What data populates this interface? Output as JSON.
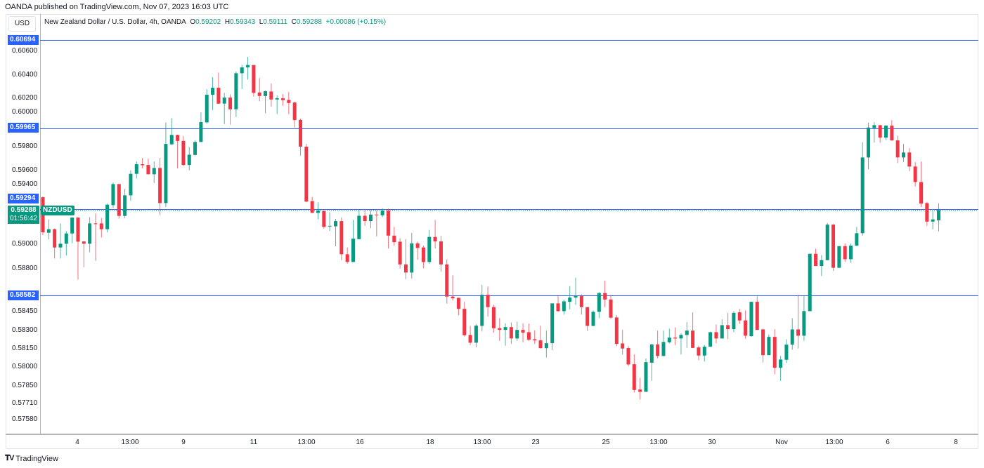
{
  "header": {
    "published": "OANDA published on TradingView.com, Nov 07, 2023 16:03 UTC"
  },
  "currency": "USD",
  "legend": {
    "title": "New Zealand Dollar / U.S. Dollar, 4h, OANDA",
    "o_label": "O",
    "o": "0.59202",
    "h_label": "H",
    "h": "0.59343",
    "l_label": "L",
    "l": "0.59111",
    "c_label": "C",
    "c": "0.59288",
    "change": "+0.00086 (+0.15%)"
  },
  "price_ticks": [
    "0.60600",
    "0.60400",
    "0.60200",
    "0.60000",
    "0.59800",
    "0.59600",
    "0.59400",
    "0.59000",
    "0.58800",
    "0.58450",
    "0.58300",
    "0.58150",
    "0.58000",
    "0.57850",
    "0.57710",
    "0.57580"
  ],
  "levels": [
    {
      "label": "0.60694",
      "value": 0.60694
    },
    {
      "label": "0.59965",
      "value": 0.59965
    },
    {
      "label": "0.59294",
      "value": 0.59294
    },
    {
      "label": "0.58582",
      "value": 0.58582
    }
  ],
  "current": {
    "price": "0.59288",
    "value": 0.59288,
    "countdown": "01:56:42",
    "symbol": "NZDUSD"
  },
  "time_labels": [
    "4",
    "13:00",
    "9",
    "11",
    "13:00",
    "16",
    "18",
    "13:00",
    "23",
    "25",
    "13:00",
    "30",
    "Nov",
    "13:00",
    "6",
    "8"
  ],
  "footer": {
    "brand": "TradingView"
  },
  "colors": {
    "up": "#089981",
    "down": "#f23645",
    "level": "#2962ff"
  },
  "chart_data": {
    "type": "candlestick",
    "title": "New Zealand Dollar / U.S. Dollar, 4h, OANDA",
    "ylim": [
      0.5752,
      0.6079
    ],
    "ohlc": [
      [
        0.59393,
        0.594,
        0.5908,
        0.59103
      ],
      [
        0.591,
        0.5921,
        0.59045,
        0.59129
      ],
      [
        0.59129,
        0.59135,
        0.58887,
        0.58978
      ],
      [
        0.58978,
        0.59177,
        0.58887,
        0.59009
      ],
      [
        0.59009,
        0.59113,
        0.58912,
        0.59094
      ],
      [
        0.59094,
        0.59229,
        0.59013,
        0.59225
      ],
      [
        0.59225,
        0.59229,
        0.58713,
        0.59026
      ],
      [
        0.59028,
        0.59028,
        0.58815,
        0.59009
      ],
      [
        0.59009,
        0.59229,
        0.58939,
        0.59177
      ],
      [
        0.59177,
        0.59258,
        0.58868,
        0.59171
      ],
      [
        0.59177,
        0.59221,
        0.59061,
        0.59129
      ],
      [
        0.59129,
        0.59341,
        0.59103,
        0.59332
      ],
      [
        0.59328,
        0.59515,
        0.59303,
        0.59502
      ],
      [
        0.59502,
        0.59502,
        0.59216,
        0.59239
      ],
      [
        0.59239,
        0.59463,
        0.59221,
        0.59409
      ],
      [
        0.59409,
        0.59616,
        0.59364,
        0.59587
      ],
      [
        0.59587,
        0.59689,
        0.59548,
        0.59666
      ],
      [
        0.59666,
        0.59718,
        0.59631,
        0.59658
      ],
      [
        0.5966,
        0.59712,
        0.59583,
        0.59583
      ],
      [
        0.59583,
        0.59689,
        0.59511,
        0.59635
      ],
      [
        0.59635,
        0.59718,
        0.59245,
        0.59345
      ],
      [
        0.59345,
        0.60012,
        0.59312,
        0.59834
      ],
      [
        0.5983,
        0.60047,
        0.59828,
        0.59908
      ],
      [
        0.59908,
        0.5991,
        0.59631,
        0.59859
      ],
      [
        0.59859,
        0.59898,
        0.5965,
        0.5966
      ],
      [
        0.5966,
        0.59809,
        0.59616,
        0.59745
      ],
      [
        0.59743,
        0.59863,
        0.59737,
        0.5985
      ],
      [
        0.5985,
        0.60095,
        0.5985,
        0.60014
      ],
      [
        0.60012,
        0.60285,
        0.60002,
        0.6024
      ],
      [
        0.6024,
        0.60385,
        0.60114,
        0.60298
      ],
      [
        0.60298,
        0.60424,
        0.60163,
        0.60167
      ],
      [
        0.60167,
        0.60256,
        0.59998,
        0.60217
      ],
      [
        0.60217,
        0.60244,
        0.59993,
        0.6012
      ],
      [
        0.6012,
        0.60433,
        0.60056,
        0.60418
      ],
      [
        0.60418,
        0.60487,
        0.60288,
        0.60466
      ],
      [
        0.60466,
        0.60553,
        0.60366,
        0.60486
      ],
      [
        0.60486,
        0.60487,
        0.60225,
        0.60256
      ],
      [
        0.60259,
        0.60379,
        0.60186,
        0.6023
      ],
      [
        0.6023,
        0.60275,
        0.60089,
        0.60269
      ],
      [
        0.60267,
        0.60333,
        0.60143,
        0.60201
      ],
      [
        0.60201,
        0.60234,
        0.6008,
        0.60211
      ],
      [
        0.60211,
        0.60246,
        0.60149,
        0.60196
      ],
      [
        0.60198,
        0.60263,
        0.6008,
        0.60172
      ],
      [
        0.60176,
        0.60182,
        0.59969,
        0.60031
      ],
      [
        0.60033,
        0.60041,
        0.59737,
        0.59811
      ],
      [
        0.59811,
        0.59834,
        0.59351,
        0.59357
      ],
      [
        0.59361,
        0.59395,
        0.59264,
        0.59264
      ],
      [
        0.59264,
        0.59351,
        0.59211,
        0.59283
      ],
      [
        0.59279,
        0.59287,
        0.59134,
        0.59148
      ],
      [
        0.59152,
        0.59268,
        0.59115,
        0.59157
      ],
      [
        0.59153,
        0.59215,
        0.58989,
        0.59196
      ],
      [
        0.59196,
        0.59225,
        0.58873,
        0.58922
      ],
      [
        0.58922,
        0.58978,
        0.58844,
        0.58858
      ],
      [
        0.58858,
        0.59206,
        0.58858,
        0.59051
      ],
      [
        0.59047,
        0.59293,
        0.59047,
        0.5924
      ],
      [
        0.5924,
        0.59293,
        0.59157,
        0.59196
      ],
      [
        0.59196,
        0.59287,
        0.59138,
        0.5925
      ],
      [
        0.5925,
        0.59283,
        0.5907,
        0.59244
      ],
      [
        0.59244,
        0.59302,
        0.59229,
        0.59283
      ],
      [
        0.59283,
        0.59298,
        0.5897,
        0.59076
      ],
      [
        0.59076,
        0.59148,
        0.58993,
        0.59022
      ],
      [
        0.59026,
        0.59055,
        0.58804,
        0.58838
      ],
      [
        0.58838,
        0.59047,
        0.58717,
        0.58771
      ],
      [
        0.58771,
        0.59099,
        0.58722,
        0.59012
      ],
      [
        0.59012,
        0.59026,
        0.58877,
        0.58974
      ],
      [
        0.58978,
        0.58993,
        0.58806,
        0.58858
      ],
      [
        0.58858,
        0.59123,
        0.58844,
        0.59065
      ],
      [
        0.59065,
        0.59206,
        0.5897,
        0.59028
      ],
      [
        0.59028,
        0.59074,
        0.58777,
        0.58838
      ],
      [
        0.58838,
        0.58881,
        0.58514,
        0.58572
      ],
      [
        0.58572,
        0.58748,
        0.58539,
        0.58558
      ],
      [
        0.58562,
        0.58562,
        0.58419,
        0.58471
      ],
      [
        0.58471,
        0.58529,
        0.58243,
        0.58253
      ],
      [
        0.58255,
        0.5833,
        0.58172,
        0.58191
      ],
      [
        0.58191,
        0.58346,
        0.58152,
        0.58332
      ],
      [
        0.5833,
        0.5867,
        0.58284,
        0.58587
      ],
      [
        0.58587,
        0.58655,
        0.58407,
        0.58485
      ],
      [
        0.58485,
        0.58504,
        0.58274,
        0.58311
      ],
      [
        0.58311,
        0.58394,
        0.58206,
        0.58297
      ],
      [
        0.58297,
        0.58351,
        0.58166,
        0.5832
      ],
      [
        0.5832,
        0.58359,
        0.58181,
        0.58226
      ],
      [
        0.58226,
        0.58365,
        0.58206,
        0.58297
      ],
      [
        0.58297,
        0.58351,
        0.58195,
        0.58274
      ],
      [
        0.58278,
        0.58349,
        0.58206,
        0.58216
      ],
      [
        0.5822,
        0.58293,
        0.58181,
        0.5821
      ],
      [
        0.5821,
        0.58332,
        0.58143,
        0.58146
      ],
      [
        0.58146,
        0.58291,
        0.58069,
        0.58187
      ],
      [
        0.58187,
        0.58516,
        0.58129,
        0.58516
      ],
      [
        0.58516,
        0.58577,
        0.58448,
        0.58452
      ],
      [
        0.58452,
        0.58548,
        0.58423,
        0.58533
      ],
      [
        0.58529,
        0.58659,
        0.58467,
        0.58564
      ],
      [
        0.58564,
        0.58728,
        0.58504,
        0.58577
      ],
      [
        0.58577,
        0.58591,
        0.58423,
        0.58485
      ],
      [
        0.58485,
        0.58485,
        0.58288,
        0.5833
      ],
      [
        0.5833,
        0.58458,
        0.58326,
        0.58446
      ],
      [
        0.58446,
        0.5861,
        0.58394,
        0.58601
      ],
      [
        0.58601,
        0.58703,
        0.58485,
        0.58548
      ],
      [
        0.58548,
        0.58587,
        0.58388,
        0.58398
      ],
      [
        0.584,
        0.58419,
        0.58162,
        0.58181
      ],
      [
        0.58185,
        0.58297,
        0.58094,
        0.58143
      ],
      [
        0.58147,
        0.58162,
        0.57998,
        0.58011
      ],
      [
        0.58013,
        0.58094,
        0.57779,
        0.578
      ],
      [
        0.57804,
        0.57901,
        0.57721,
        0.57785
      ],
      [
        0.57785,
        0.58061,
        0.57785,
        0.5803
      ],
      [
        0.58026,
        0.58181,
        0.57876,
        0.58177
      ],
      [
        0.58177,
        0.58291,
        0.58061,
        0.58081
      ],
      [
        0.58081,
        0.58291,
        0.58081,
        0.58197
      ],
      [
        0.58195,
        0.58307,
        0.58185,
        0.58233
      ],
      [
        0.58233,
        0.58317,
        0.58172,
        0.58226
      ],
      [
        0.58226,
        0.58268,
        0.58094,
        0.58255
      ],
      [
        0.58255,
        0.58361,
        0.58148,
        0.58291
      ],
      [
        0.58291,
        0.58442,
        0.58148,
        0.58148
      ],
      [
        0.58152,
        0.58166,
        0.58046,
        0.58085
      ],
      [
        0.58085,
        0.58172,
        0.58036,
        0.58158
      ],
      [
        0.58158,
        0.58282,
        0.58156,
        0.58278
      ],
      [
        0.58278,
        0.5834,
        0.58187,
        0.58226
      ],
      [
        0.58226,
        0.58384,
        0.58226,
        0.58336
      ],
      [
        0.58336,
        0.58438,
        0.5822,
        0.58303
      ],
      [
        0.58303,
        0.58452,
        0.58278,
        0.58438
      ],
      [
        0.58442,
        0.58471,
        0.58346,
        0.58375
      ],
      [
        0.58375,
        0.58458,
        0.58224,
        0.58249
      ],
      [
        0.58245,
        0.58529,
        0.58239,
        0.58529
      ],
      [
        0.58529,
        0.58574,
        0.58297,
        0.58297
      ],
      [
        0.58301,
        0.58307,
        0.58027,
        0.58088
      ],
      [
        0.58088,
        0.58259,
        0.58088,
        0.58239
      ],
      [
        0.58239,
        0.58303,
        0.5793,
        0.57984
      ],
      [
        0.57984,
        0.58081,
        0.57876,
        0.58052
      ],
      [
        0.5805,
        0.5822,
        0.58023,
        0.58175
      ],
      [
        0.58175,
        0.58394,
        0.58133,
        0.58301
      ],
      [
        0.58301,
        0.58587,
        0.58143,
        0.58249
      ],
      [
        0.58249,
        0.58581,
        0.58206,
        0.58452
      ],
      [
        0.58452,
        0.58926,
        0.58452,
        0.58926
      ],
      [
        0.58926,
        0.58968,
        0.58825,
        0.58825
      ],
      [
        0.58825,
        0.58916,
        0.58742,
        0.58873
      ],
      [
        0.58873,
        0.59181,
        0.58873,
        0.59167
      ],
      [
        0.59167,
        0.59171,
        0.58784,
        0.5881
      ],
      [
        0.5881,
        0.58989,
        0.5881,
        0.58989
      ],
      [
        0.58989,
        0.59013,
        0.58858,
        0.58881
      ],
      [
        0.58881,
        0.59009,
        0.58852,
        0.58993
      ],
      [
        0.58993,
        0.59148,
        0.58993,
        0.59096
      ],
      [
        0.59096,
        0.59848,
        0.59076,
        0.59722
      ],
      [
        0.59722,
        0.60008,
        0.59625,
        0.59969
      ],
      [
        0.59965,
        0.60014,
        0.59844,
        0.59989
      ],
      [
        0.59989,
        0.59989,
        0.59844,
        0.59886
      ],
      [
        0.59886,
        0.59989,
        0.59867,
        0.59985
      ],
      [
        0.59985,
        0.60031,
        0.59859,
        0.59863
      ],
      [
        0.59863,
        0.59902,
        0.59676,
        0.59722
      ],
      [
        0.59722,
        0.59834,
        0.59685,
        0.59763
      ],
      [
        0.59763,
        0.59799,
        0.59608,
        0.59647
      ],
      [
        0.59647,
        0.59683,
        0.59482,
        0.59519
      ],
      [
        0.59519,
        0.59689,
        0.59312,
        0.59341
      ],
      [
        0.59345,
        0.59355,
        0.59157,
        0.59192
      ],
      [
        0.59192,
        0.59277,
        0.59128,
        0.5921
      ],
      [
        0.59202,
        0.59343,
        0.59111,
        0.59288
      ]
    ]
  }
}
